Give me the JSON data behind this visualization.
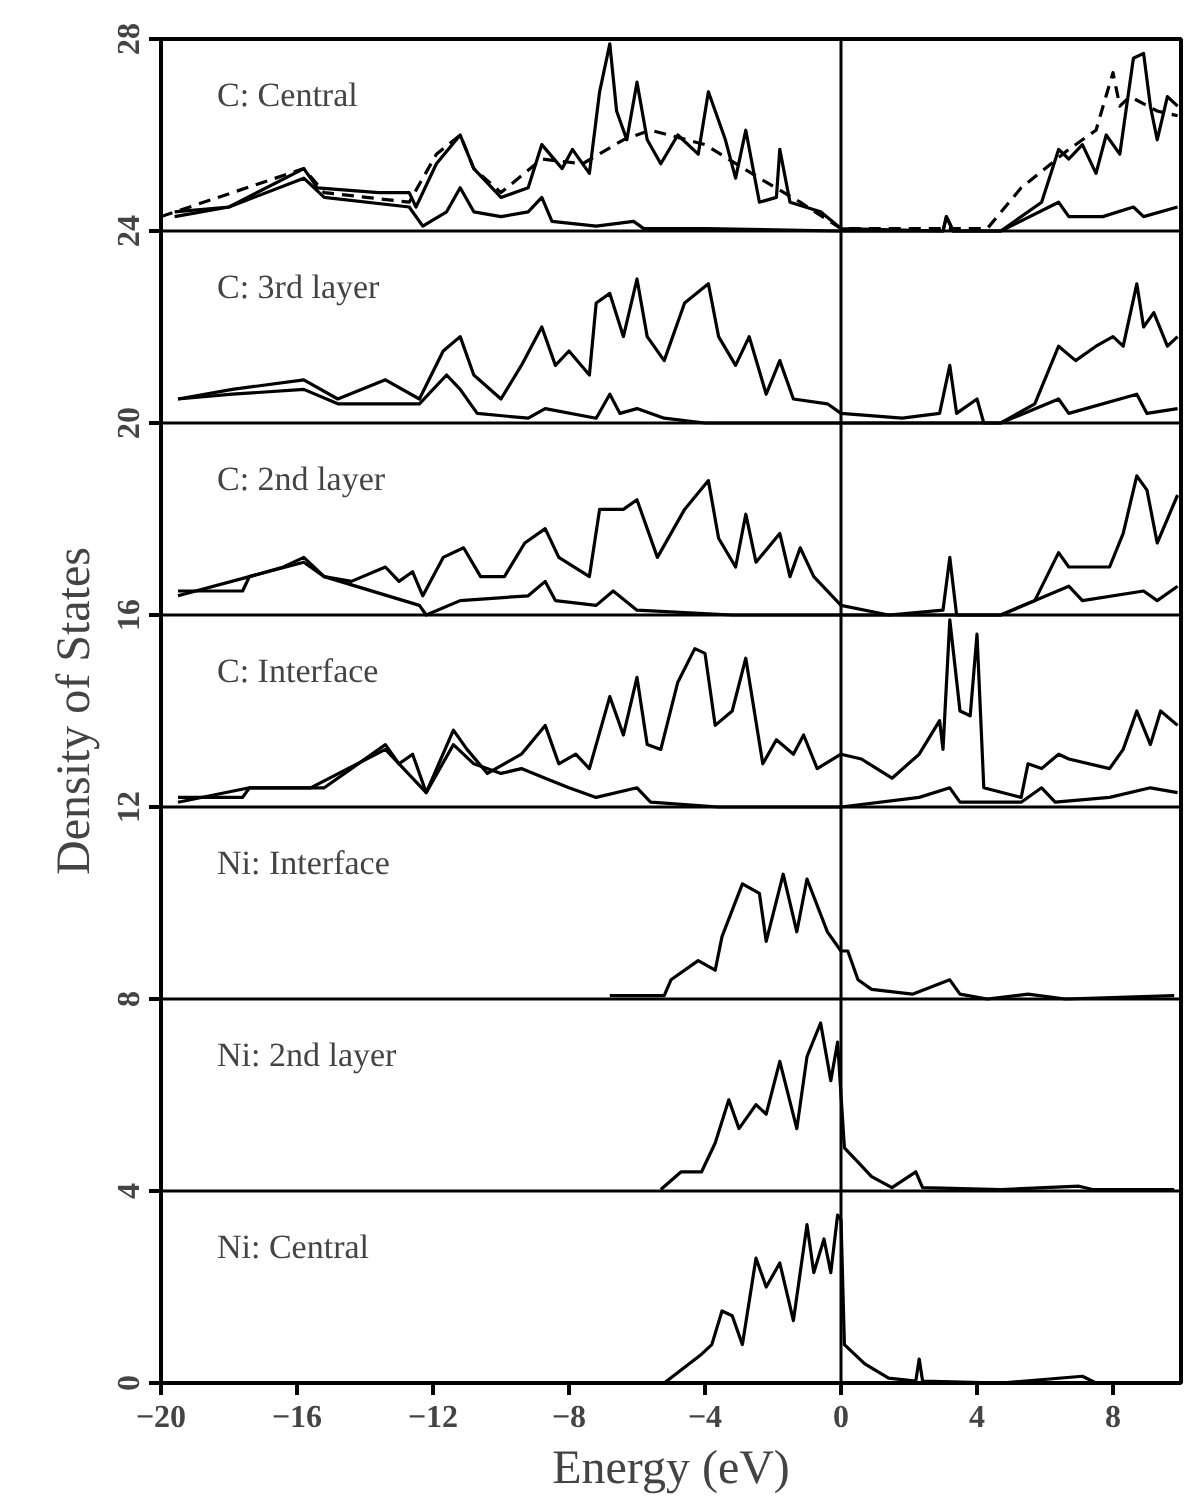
{
  "chart_data": {
    "type": "line",
    "xlabel": "Energy (eV)",
    "ylabel": "Density of States",
    "xlim": [
      -20,
      10
    ],
    "ylim": [
      0,
      28
    ],
    "xticks": [
      -20,
      -16,
      -12,
      -8,
      -4,
      0,
      4,
      8
    ],
    "yticks": [
      0,
      4,
      8,
      12,
      16,
      20,
      24,
      28
    ],
    "grid": false,
    "ref_lines": [
      {
        "axis": "x",
        "value": 0
      },
      {
        "axis": "y",
        "value": 4
      },
      {
        "axis": "y",
        "value": 8
      },
      {
        "axis": "y",
        "value": 12
      },
      {
        "axis": "y",
        "value": 16
      },
      {
        "axis": "y",
        "value": 20
      },
      {
        "axis": "y",
        "value": 24
      }
    ],
    "annotations": [
      "C: Central",
      "C: 3rd layer",
      "C: 2nd layer",
      "C: Interface",
      "Ni: Interface",
      "Ni: 2nd layer",
      "Ni: Central"
    ],
    "series": [
      {
        "color": "#000000",
        "x": [
          -19.6,
          -18.0,
          -15.8,
          -15.4,
          -13.6,
          -12.7,
          -12.5,
          -11.9,
          -11.2,
          -10.8,
          -10.0,
          -9.2,
          -8.8,
          -8.2,
          -7.9,
          -7.4,
          -7.1,
          -6.8,
          -6.6,
          -6.3,
          -6.0,
          -5.7,
          -5.3,
          -4.8,
          -4.2,
          -3.9,
          -3.4,
          -3.1,
          -2.8,
          -2.4,
          -1.9,
          -1.8,
          -1.5,
          -0.6,
          0,
          3.0,
          3.1,
          3.3,
          4.7,
          5.9,
          6.4,
          6.7,
          7.1,
          7.5,
          7.8,
          8.2,
          8.6,
          8.9,
          9.1,
          9.3,
          9.6,
          9.9
        ],
        "values": [
          24.4,
          24.5,
          25.3,
          24.9,
          24.8,
          24.8,
          24.5,
          25.4,
          26.0,
          25.3,
          24.7,
          24.9,
          25.8,
          25.3,
          25.7,
          25.2,
          26.9,
          27.9,
          26.5,
          25.9,
          27.1,
          25.9,
          25.4,
          26.0,
          25.6,
          26.9,
          25.9,
          25.1,
          26.1,
          24.6,
          24.7,
          25.7,
          24.6,
          24.4,
          24.05,
          24.0,
          24.3,
          24.0,
          24.0,
          24.6,
          25.7,
          25.5,
          25.8,
          25.2,
          26.0,
          25.6,
          27.6,
          27.7,
          26.6,
          25.9,
          26.8,
          26.6
        ]
      },
      {
        "color": "#000000",
        "x": [
          -19.6,
          -18.0,
          -15.8,
          -15.2,
          -12.7,
          -12.3,
          -11.6,
          -11.2,
          -10.8,
          -10.0,
          -9.2,
          -8.8,
          -8.5,
          -7.2,
          -6.1,
          -5.8,
          -4.0,
          0,
          3.0,
          3.1,
          3.3,
          4.7,
          6.4,
          6.7,
          7.7,
          8.6,
          8.9,
          9.9
        ],
        "values": [
          24.3,
          24.5,
          25.1,
          24.7,
          24.5,
          24.1,
          24.4,
          24.9,
          24.4,
          24.3,
          24.4,
          24.7,
          24.2,
          24.1,
          24.2,
          24.05,
          24.05,
          24.0,
          24.0,
          24.3,
          24.0,
          24.0,
          24.6,
          24.3,
          24.3,
          24.5,
          24.3,
          24.5
        ]
      },
      {
        "color": "#000000",
        "line_style": "dashed",
        "x": [
          -20,
          -15.8,
          -15.2,
          -12.7,
          -11.9,
          -11.2,
          -10.8,
          -10.0,
          -8.8,
          -7.6,
          -6.4,
          -5.6,
          -4.0,
          -2.4,
          -1.2,
          0,
          4.3,
          5.3,
          6.7,
          7.5,
          8.0,
          8.2,
          8.5,
          9.3,
          9.9
        ],
        "values": [
          24.3,
          25.3,
          24.8,
          24.6,
          25.6,
          26.0,
          25.3,
          24.8,
          25.5,
          25.4,
          25.9,
          26.1,
          25.8,
          25.1,
          24.6,
          24.05,
          24.05,
          24.9,
          25.7,
          26.1,
          27.3,
          26.6,
          26.8,
          26.5,
          26.4
        ]
      },
      {
        "color": "#000000",
        "x": [
          -19.5,
          -17.9,
          -15.8,
          -14.8,
          -13.4,
          -12.4,
          -11.7,
          -11.2,
          -10.8,
          -10.0,
          -9.4,
          -8.8,
          -8.4,
          -8.0,
          -7.4,
          -7.2,
          -6.8,
          -6.4,
          -6.0,
          -5.7,
          -5.2,
          -4.6,
          -3.9,
          -3.6,
          -3.1,
          -2.7,
          -2.2,
          -1.8,
          -1.4,
          -0.4,
          0,
          1.8,
          2.9,
          3.2,
          3.4,
          4.0,
          4.2,
          4.7,
          5.7,
          6.4,
          6.9,
          7.5,
          8.0,
          8.3,
          8.7,
          8.9,
          9.2,
          9.6,
          9.9
        ],
        "values": [
          20.5,
          20.7,
          20.9,
          20.5,
          20.9,
          20.5,
          21.5,
          21.8,
          21.0,
          20.5,
          21.2,
          22.0,
          21.2,
          21.5,
          21.0,
          22.5,
          22.7,
          21.8,
          23.0,
          21.8,
          21.3,
          22.5,
          22.9,
          21.8,
          21.2,
          21.8,
          20.6,
          21.3,
          20.5,
          20.4,
          20.2,
          20.1,
          20.2,
          21.2,
          20.2,
          20.5,
          20.0,
          20.0,
          20.4,
          21.6,
          21.3,
          21.6,
          21.8,
          21.6,
          22.9,
          22.0,
          22.3,
          21.6,
          21.8
        ]
      },
      {
        "color": "#000000",
        "x": [
          -19.5,
          -17.9,
          -15.8,
          -14.8,
          -12.4,
          -11.6,
          -11.2,
          -10.7,
          -9.2,
          -8.7,
          -7.2,
          -6.8,
          -6.5,
          -6.0,
          -5.2,
          -4.0,
          0,
          4.7,
          6.4,
          6.7,
          8.7,
          9.0,
          9.9
        ],
        "values": [
          20.5,
          20.6,
          20.7,
          20.4,
          20.4,
          21.0,
          20.7,
          20.2,
          20.1,
          20.3,
          20.1,
          20.6,
          20.2,
          20.3,
          20.1,
          20.0,
          20.0,
          20.0,
          20.5,
          20.2,
          20.6,
          20.2,
          20.3
        ]
      },
      {
        "color": "#000000",
        "x": [
          -19.5,
          -17.6,
          -17.4,
          -16.4,
          -15.8,
          -15.2,
          -14.4,
          -13.4,
          -13.0,
          -12.6,
          -12.3,
          -11.7,
          -11.1,
          -10.6,
          -9.9,
          -9.3,
          -8.7,
          -8.3,
          -7.4,
          -7.1,
          -6.4,
          -6.0,
          -5.4,
          -4.6,
          -3.9,
          -3.6,
          -3.1,
          -2.8,
          -2.5,
          -1.8,
          -1.5,
          -1.2,
          -0.8,
          0,
          1.4,
          3.0,
          3.2,
          3.4,
          4.7,
          5.7,
          6.4,
          6.7,
          7.9,
          8.3,
          8.7,
          9.0,
          9.3,
          9.9
        ],
        "values": [
          16.5,
          16.5,
          16.8,
          17.0,
          17.2,
          16.8,
          16.7,
          17.0,
          16.7,
          16.9,
          16.4,
          17.2,
          17.4,
          16.8,
          16.8,
          17.5,
          17.8,
          17.2,
          16.8,
          18.2,
          18.2,
          18.4,
          17.2,
          18.2,
          18.8,
          17.6,
          17.0,
          18.1,
          17.1,
          17.7,
          16.8,
          17.4,
          16.8,
          16.2,
          16.0,
          16.1,
          17.2,
          16.0,
          16.0,
          16.3,
          17.3,
          17.0,
          17.0,
          17.7,
          18.9,
          18.6,
          17.5,
          18.5
        ]
      },
      {
        "color": "#000000",
        "x": [
          -19.5,
          -17.4,
          -15.8,
          -15.2,
          -12.4,
          -12.2,
          -11.2,
          -9.2,
          -8.7,
          -8.4,
          -7.2,
          -6.7,
          -6.0,
          -3.2,
          0,
          4.7,
          6.7,
          7.1,
          8.9,
          9.3,
          9.9
        ],
        "values": [
          16.4,
          16.8,
          17.1,
          16.8,
          16.2,
          16.0,
          16.3,
          16.4,
          16.7,
          16.3,
          16.2,
          16.5,
          16.1,
          16.0,
          16.0,
          16.0,
          16.6,
          16.3,
          16.5,
          16.3,
          16.6
        ]
      },
      {
        "color": "#000000",
        "x": [
          -19.5,
          -17.6,
          -17.4,
          -15.6,
          -15.2,
          -14.4,
          -13.4,
          -13.0,
          -12.6,
          -12.2,
          -11.4,
          -11.0,
          -10.4,
          -9.4,
          -8.7,
          -8.3,
          -7.8,
          -7.4,
          -6.8,
          -6.4,
          -6.0,
          -5.7,
          -5.3,
          -4.8,
          -4.3,
          -4.0,
          -3.7,
          -3.2,
          -2.8,
          -2.3,
          -1.9,
          -1.4,
          -1.1,
          -0.7,
          0,
          0.6,
          1.5,
          2.3,
          2.9,
          3.0,
          3.2,
          3.5,
          3.8,
          4.0,
          4.2,
          5.3,
          5.5,
          5.9,
          6.4,
          6.7,
          7.9,
          8.3,
          8.7,
          9.1,
          9.4,
          9.9
        ],
        "values": [
          12.2,
          12.2,
          12.4,
          12.4,
          12.4,
          12.8,
          13.3,
          12.9,
          13.1,
          12.3,
          13.6,
          13.2,
          12.7,
          13.1,
          13.7,
          12.9,
          13.1,
          12.8,
          14.3,
          13.5,
          14.7,
          13.3,
          13.2,
          14.6,
          15.3,
          15.2,
          13.7,
          14.0,
          15.1,
          12.9,
          13.4,
          13.1,
          13.5,
          12.8,
          13.1,
          13.0,
          12.6,
          13.1,
          13.8,
          13.2,
          15.9,
          14.0,
          13.9,
          15.6,
          12.4,
          12.2,
          12.9,
          12.8,
          13.1,
          13.0,
          12.8,
          13.2,
          14.0,
          13.3,
          14.0,
          13.7
        ]
      },
      {
        "color": "#000000",
        "x": [
          -19.5,
          -17.4,
          -15.6,
          -13.4,
          -12.2,
          -11.4,
          -10.8,
          -10.0,
          -9.4,
          -8.7,
          -8.0,
          -7.2,
          -6.0,
          -5.6,
          -3.6,
          0,
          2.3,
          3.2,
          3.5,
          5.3,
          5.9,
          6.3,
          7.9,
          9.1,
          9.9
        ],
        "values": [
          12.1,
          12.4,
          12.4,
          13.2,
          12.3,
          13.3,
          12.9,
          12.7,
          12.8,
          12.6,
          12.4,
          12.2,
          12.4,
          12.1,
          12.0,
          12.0,
          12.2,
          12.4,
          12.1,
          12.1,
          12.4,
          12.1,
          12.2,
          12.4,
          12.3
        ]
      },
      {
        "color": "#000000",
        "x": [
          -6.8,
          -5.2,
          -5.0,
          -4.2,
          -3.7,
          -3.5,
          -2.9,
          -2.4,
          -2.2,
          -1.7,
          -1.3,
          -1.0,
          -0.4,
          0,
          0.2,
          0.5,
          0.9,
          2.1,
          3.2,
          3.5,
          4.3,
          5.5,
          6.6,
          9.8
        ],
        "values": [
          8.07,
          8.07,
          8.4,
          8.8,
          8.6,
          9.3,
          10.4,
          10.2,
          9.2,
          10.6,
          9.4,
          10.5,
          9.4,
          9.0,
          9.0,
          8.4,
          8.2,
          8.1,
          8.4,
          8.1,
          8.0,
          8.1,
          8.0,
          8.07
        ]
      },
      {
        "color": "#000000",
        "x": [
          -5.3,
          -4.7,
          -4.1,
          -3.7,
          -3.3,
          -3.0,
          -2.5,
          -2.2,
          -1.8,
          -1.3,
          -1.0,
          -0.6,
          -0.3,
          -0.1,
          0.1,
          0.5,
          0.9,
          1.5,
          2.2,
          2.4,
          4.7,
          7.0,
          7.4,
          9.8
        ],
        "values": [
          4.03,
          4.4,
          4.4,
          5.0,
          5.9,
          5.3,
          5.8,
          5.6,
          6.7,
          5.3,
          6.8,
          7.5,
          6.3,
          7.1,
          4.9,
          4.6,
          4.3,
          4.07,
          4.4,
          4.07,
          4.03,
          4.1,
          4.03,
          4.03
        ]
      },
      {
        "color": "#000000",
        "x": [
          -5.2,
          -4.1,
          -3.8,
          -3.5,
          -3.2,
          -2.9,
          -2.5,
          -2.2,
          -1.8,
          -1.4,
          -1.0,
          -0.8,
          -0.5,
          -0.3,
          -0.1,
          0.0,
          0.1,
          0.7,
          1.4,
          2.2,
          2.3,
          2.4,
          4.7,
          7.1,
          7.5,
          9.8
        ],
        "values": [
          0,
          0.6,
          0.8,
          1.5,
          1.4,
          0.8,
          2.6,
          2.0,
          2.5,
          1.3,
          3.3,
          2.3,
          3.0,
          2.3,
          3.5,
          3.4,
          0.8,
          0.4,
          0.1,
          0.04,
          0.5,
          0.04,
          0,
          0.14,
          0,
          0
        ]
      }
    ]
  }
}
